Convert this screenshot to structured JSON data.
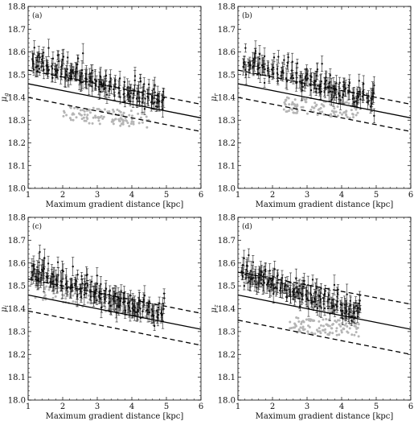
{
  "figure": {
    "x_tick_labels": [
      "1",
      "2",
      "3",
      "4",
      "5",
      "6"
    ],
    "y_tick_labels": [
      "18.0",
      "18.1",
      "18.2",
      "18.3",
      "18.4",
      "18.5",
      "18.6",
      "18.7",
      "18.8"
    ]
  },
  "chart_data": [
    {
      "type": "scatter",
      "panel_label": "(a)",
      "ylabel_base": "μ",
      "ylabel_sub": "g",
      "xlabel": "Maximum gradient distance [kpc]",
      "xlim": [
        1,
        6
      ],
      "ylim": [
        18.0,
        18.8
      ],
      "fit_line": {
        "x": [
          1,
          6
        ],
        "y": [
          18.46,
          18.31
        ]
      },
      "bounds": [
        {
          "x": [
            1,
            6
          ],
          "y": [
            18.52,
            18.37
          ]
        },
        {
          "x": [
            1,
            6
          ],
          "y": [
            18.4,
            18.25
          ]
        }
      ],
      "scatter_trend": {
        "x_start": 1.15,
        "x_end": 4.9,
        "y_start": 18.55,
        "y_end": 18.37
      },
      "grey_trend": {
        "x_start": 2.0,
        "x_end": 4.5,
        "y_start": 18.33,
        "y_end": 18.3
      }
    },
    {
      "type": "scatter",
      "panel_label": "(b)",
      "ylabel_base": "μ",
      "ylabel_sub": "r",
      "xlabel": "Maximum gradient distance [kpc]",
      "xlim": [
        1,
        6
      ],
      "ylim": [
        18.0,
        18.8
      ],
      "fit_line": {
        "x": [
          1,
          6
        ],
        "y": [
          18.46,
          18.31
        ]
      },
      "bounds": [
        {
          "x": [
            1,
            6
          ],
          "y": [
            18.52,
            18.37
          ]
        },
        {
          "x": [
            1,
            6
          ],
          "y": [
            18.4,
            18.25
          ]
        }
      ],
      "scatter_trend": {
        "x_start": 1.2,
        "x_end": 4.9,
        "y_start": 18.55,
        "y_end": 18.38
      },
      "grey_trend": {
        "x_start": 2.3,
        "x_end": 4.5,
        "y_start": 18.37,
        "y_end": 18.34
      }
    },
    {
      "type": "scatter",
      "panel_label": "(c)",
      "ylabel_base": "μ",
      "ylabel_sub": "i",
      "xlabel": "Maximum gradient distance [kpc]",
      "xlim": [
        1,
        6
      ],
      "ylim": [
        18.0,
        18.8
      ],
      "fit_line": {
        "x": [
          1,
          6
        ],
        "y": [
          18.46,
          18.31
        ]
      },
      "bounds": [
        {
          "x": [
            1,
            6
          ],
          "y": [
            18.53,
            18.38
          ]
        },
        {
          "x": [
            1,
            6
          ],
          "y": [
            18.39,
            18.24
          ]
        }
      ],
      "scatter_trend": {
        "x_start": 1.15,
        "x_end": 4.9,
        "y_start": 18.55,
        "y_end": 18.37
      },
      "grey_trend": {
        "x_start": 1.2,
        "x_end": 4.8,
        "y_start": 18.48,
        "y_end": 18.38
      }
    },
    {
      "type": "scatter",
      "panel_label": "(d)",
      "ylabel_base": "μ",
      "ylabel_sub": "z",
      "xlabel": "Maximum gradient distance [kpc]",
      "xlim": [
        1,
        6
      ],
      "ylim": [
        18.0,
        18.8
      ],
      "fit_line": {
        "x": [
          1,
          6
        ],
        "y": [
          18.46,
          18.31
        ]
      },
      "bounds": [
        {
          "x": [
            1,
            6
          ],
          "y": [
            18.56,
            18.42
          ]
        },
        {
          "x": [
            1,
            6
          ],
          "y": [
            18.35,
            18.2
          ]
        }
      ],
      "scatter_trend": {
        "x_start": 1.15,
        "x_end": 4.5,
        "y_start": 18.55,
        "y_end": 18.38
      },
      "grey_trend": {
        "x_start": 2.5,
        "x_end": 4.5,
        "y_start": 18.33,
        "y_end": 18.31
      }
    }
  ]
}
